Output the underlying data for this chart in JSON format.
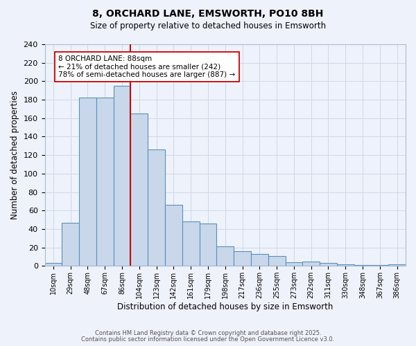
{
  "title": "8, ORCHARD LANE, EMSWORTH, PO10 8BH",
  "subtitle": "Size of property relative to detached houses in Emsworth",
  "xlabel": "Distribution of detached houses by size in Emsworth",
  "ylabel": "Number of detached properties",
  "bar_labels": [
    "10sqm",
    "29sqm",
    "48sqm",
    "67sqm",
    "86sqm",
    "104sqm",
    "123sqm",
    "142sqm",
    "161sqm",
    "179sqm",
    "198sqm",
    "217sqm",
    "236sqm",
    "255sqm",
    "273sqm",
    "292sqm",
    "311sqm",
    "330sqm",
    "348sqm",
    "367sqm",
    "386sqm"
  ],
  "bar_values": [
    3,
    47,
    182,
    182,
    195,
    165,
    126,
    66,
    48,
    46,
    21,
    16,
    13,
    11,
    4,
    5,
    3,
    2,
    1,
    1,
    2
  ],
  "bar_color": "#c8d8ea",
  "bar_edge_color": "#5a8fc0",
  "vline_color": "#cc0000",
  "annotation_text": "8 ORCHARD LANE: 88sqm\n← 21% of detached houses are smaller (242)\n78% of semi-detached houses are larger (887) →",
  "annotation_box_color": "#ffffff",
  "annotation_box_edge": "#cc0000",
  "ylim": [
    0,
    240
  ],
  "yticks": [
    0,
    20,
    40,
    60,
    80,
    100,
    120,
    140,
    160,
    180,
    200,
    220,
    240
  ],
  "grid_color": "#cdd8ea",
  "bg_color": "#eef2fa",
  "footer1": "Contains HM Land Registry data © Crown copyright and database right 2025.",
  "footer2": "Contains public sector information licensed under the Open Government Licence v3.0."
}
